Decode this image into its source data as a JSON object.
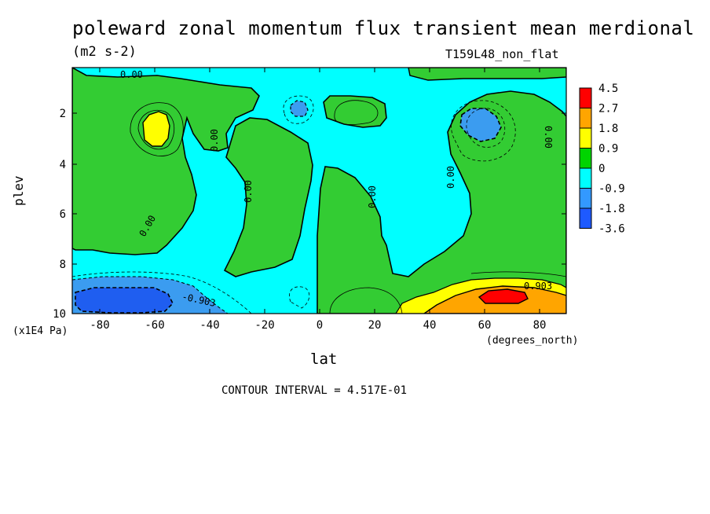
{
  "chart_data": {
    "type": "heatmap",
    "title": "poleward zonal momentum flux transient mean merdional",
    "subtitle_units": "(m2 s-2)",
    "model_label": "T159L48_non_flat",
    "xlabel": "lat",
    "x_units": "(degrees_north)",
    "ylabel": "plev",
    "y_units": "(x1E4 Pa)",
    "xlim": [
      -90,
      90
    ],
    "ylim": [
      10,
      0.3
    ],
    "x_ticks": [
      "-80",
      "-60",
      "-40",
      "-20",
      "0",
      "20",
      "40",
      "60",
      "80"
    ],
    "y_ticks": [
      "2",
      "4",
      "6",
      "8",
      "10"
    ],
    "contour_interval_text": "CONTOUR INTERVAL = 4.517E-01",
    "contour_labels": [
      "0.00",
      "0.00",
      "0.00",
      "0.00",
      "0.00",
      "0.00",
      "0.00",
      "-0.903",
      "0.903"
    ],
    "colorbar": {
      "labels": [
        "4.5",
        "2.7",
        "1.8",
        "0.9",
        "0",
        "-0.9",
        "-1.8",
        "-3.6"
      ],
      "colors": [
        "#ff0000",
        "#ffa500",
        "#ffff00",
        "#00d400",
        "#00ffff",
        "#3399ff",
        "#1e5aff"
      ]
    },
    "colors": {
      "green": "#33cc33",
      "cyan": "#00ffff",
      "lightblue": "#3b9cf0",
      "blue": "#1f5ef0",
      "yellow": "#ffff00",
      "orange": "#ffa500",
      "red": "#ff0000"
    }
  }
}
